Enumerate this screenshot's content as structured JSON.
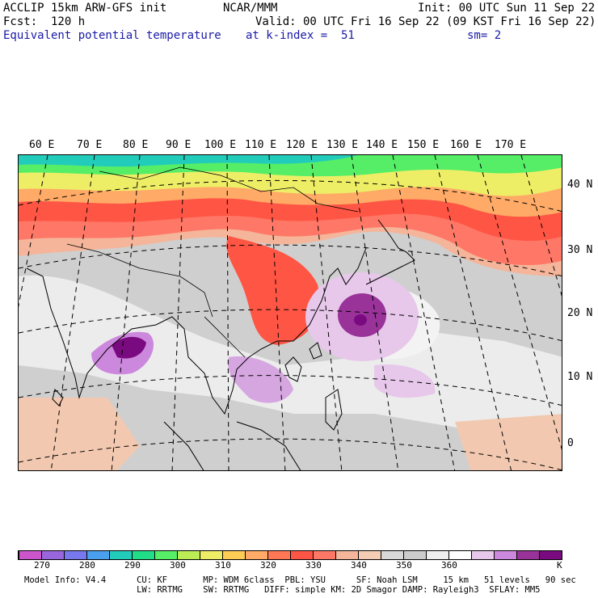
{
  "header": {
    "title": "ACCLIP 15km ARW-GFS init",
    "center": "NCAR/MMM",
    "init": "Init: 00 UTC Sun 11 Sep 22",
    "fcst": "Fcst:  120 h",
    "valid": "Valid: 00 UTC Fri 16 Sep 22 (09 KST Fri 16 Sep 22)",
    "field": "Equivalent potential temperature",
    "level": "at k-index =  51",
    "smooth": "sm= 2"
  },
  "lon_labels": [
    "60 E",
    "70 E",
    "80 E",
    "90 E",
    "100 E",
    "110 E",
    "120 E",
    "130 E",
    "140 E",
    "150 E",
    "160 E",
    "170 E"
  ],
  "lat_labels": [
    "40 N",
    "30 N",
    "20 N",
    "10 N",
    "0"
  ],
  "colorbar": {
    "unit": "K",
    "ticks": [
      "270",
      "280",
      "290",
      "300",
      "310",
      "320",
      "330",
      "340",
      "350",
      "360"
    ],
    "colors": [
      "#cc55cc",
      "#9966dd",
      "#7777ee",
      "#4aa0ee",
      "#22ccbb",
      "#22dd88",
      "#55ee66",
      "#bbee55",
      "#eeee66",
      "#ffcc55",
      "#ffaa66",
      "#ff7755",
      "#ff5544",
      "#ff7766",
      "#f5b59a",
      "#f5cdb5",
      "#d8d8d8",
      "#cccccc",
      "#eeeeee",
      "#ffffff",
      "#e7c8ea",
      "#cc88dd",
      "#993399",
      "#7a0a80"
    ]
  },
  "model_info": {
    "line1": "Model Info: V4.4      CU: KF       MP: WDM 6class  PBL: YSU      SF: Noah LSM     15 km   51 levels   90 sec",
    "line2": "                      LW: RRTMG    SW: RRTMG   DIFF: simple KM: 2D Smagor DAMP: Rayleigh3  SFLAY: MM5"
  }
}
